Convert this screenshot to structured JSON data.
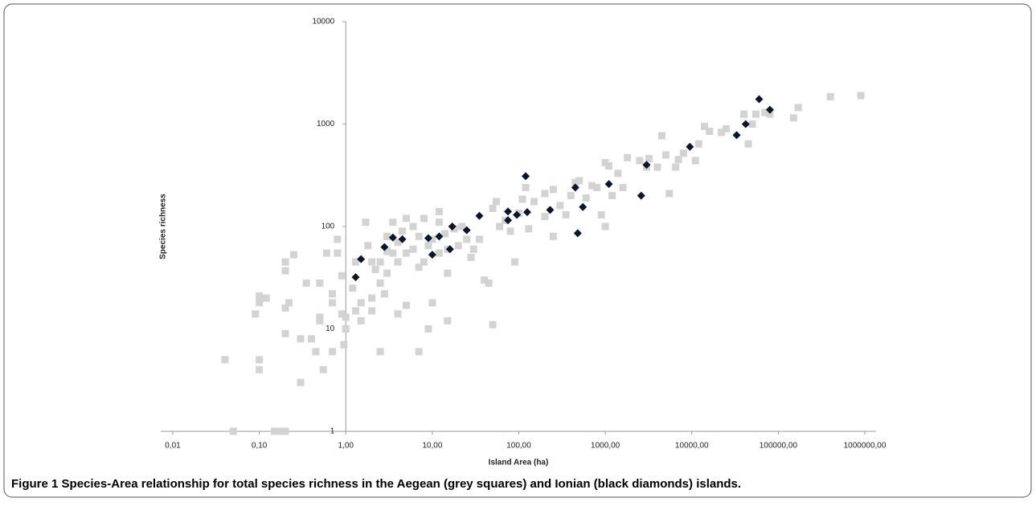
{
  "chart_data": {
    "type": "scatter",
    "xlabel": "Island Area (ha)",
    "ylabel": "Species richness",
    "figure_label": "Figure 1",
    "caption": "Species-Area relationship for total species richness in the Aegean (grey squares) and Ionian (black diamonds) islands.",
    "xscale": "log",
    "yscale": "log",
    "grid": false,
    "y_axis_at": 1,
    "xlim": [
      0.01,
      1000000
    ],
    "ylim": [
      1,
      10000
    ],
    "xticks": [
      {
        "value": 0.01,
        "label": "0,01"
      },
      {
        "value": 0.1,
        "label": "0,10"
      },
      {
        "value": 1,
        "label": "1,00"
      },
      {
        "value": 10,
        "label": "10,00"
      },
      {
        "value": 100,
        "label": "100,00"
      },
      {
        "value": 1000,
        "label": "1000,00"
      },
      {
        "value": 10000,
        "label": "10000,00"
      },
      {
        "value": 100000,
        "label": "100000,00"
      },
      {
        "value": 1000000,
        "label": "1000000,00"
      }
    ],
    "yticks": [
      1,
      10,
      100,
      1000,
      10000
    ],
    "series": [
      {
        "color": "#d3d3d3",
        "marker": "square",
        "x": [
          0.04,
          0.05,
          0.09,
          0.1,
          0.1,
          0.1,
          0.1,
          0.12,
          0.15,
          0.17,
          0.2,
          0.2,
          0.2,
          0.2,
          0.2,
          0.22,
          0.25,
          0.3,
          0.3,
          0.35,
          0.4,
          0.45,
          0.5,
          0.5,
          0.5,
          0.55,
          0.6,
          0.7,
          0.7,
          0.7,
          0.8,
          0.8,
          0.9,
          0.9,
          0.95,
          1,
          1,
          1.2,
          1.3,
          1.3,
          1.5,
          1.5,
          1.7,
          1.8,
          2,
          2,
          2,
          2.2,
          2.5,
          2.5,
          2.5,
          2.8,
          3,
          3,
          3,
          3.5,
          3.5,
          4,
          4,
          4,
          4.5,
          5,
          5,
          5,
          6,
          6,
          7,
          7,
          7,
          8,
          8,
          9,
          9,
          10,
          10,
          12,
          12,
          12,
          14,
          15,
          15,
          15,
          18,
          20,
          22,
          25,
          28,
          30,
          35,
          40,
          45,
          50,
          50,
          55,
          60,
          70,
          80,
          90,
          100,
          110,
          120,
          130,
          150,
          200,
          200,
          250,
          250,
          300,
          350,
          400,
          450,
          500,
          600,
          700,
          800,
          900,
          1000,
          1000,
          1100,
          1200,
          1400,
          1600,
          1800,
          2500,
          3000,
          3200,
          4000,
          4500,
          5000,
          5500,
          6500,
          7000,
          8000,
          11000,
          12000,
          14000,
          16000,
          22000,
          25000,
          40000,
          45000,
          50000,
          55000,
          70000,
          80000,
          150000,
          170000,
          400000,
          900000
        ],
        "values": [
          5,
          1,
          14,
          21,
          18,
          5,
          4,
          20,
          1,
          1,
          1,
          45,
          37,
          16,
          9,
          18,
          53,
          3,
          8,
          28,
          8,
          6,
          28,
          13,
          12,
          4,
          55,
          18,
          22,
          6,
          75,
          55,
          33,
          14,
          7,
          10,
          13,
          25,
          45,
          15,
          18,
          12,
          110,
          65,
          45,
          20,
          15,
          38,
          45,
          28,
          6,
          22,
          80,
          57,
          35,
          110,
          55,
          70,
          45,
          14,
          90,
          120,
          55,
          17,
          100,
          60,
          80,
          40,
          6,
          120,
          45,
          65,
          10,
          75,
          18,
          140,
          110,
          55,
          85,
          60,
          35,
          12,
          95,
          65,
          100,
          75,
          50,
          60,
          75,
          30,
          28,
          11,
          150,
          175,
          100,
          115,
          90,
          45,
          135,
          185,
          240,
          95,
          175,
          125,
          210,
          80,
          230,
          160,
          130,
          200,
          270,
          280,
          190,
          250,
          240,
          130,
          420,
          100,
          390,
          200,
          330,
          240,
          470,
          440,
          380,
          460,
          380,
          770,
          500,
          210,
          380,
          450,
          520,
          440,
          640,
          950,
          850,
          830,
          900,
          1250,
          640,
          1000,
          1250,
          1300,
          1250,
          1150,
          1450,
          1850,
          1900
        ]
      },
      {
        "color": "#0b1626",
        "marker": "diamond",
        "x": [
          1.3,
          1.5,
          2.8,
          3.5,
          4.5,
          9,
          10,
          12,
          16,
          17,
          25,
          35,
          75,
          75,
          95,
          120,
          125,
          230,
          450,
          480,
          550,
          1100,
          2600,
          3000,
          9500,
          33000,
          42000,
          60000,
          80000
        ],
        "values": [
          32,
          48,
          63,
          78,
          75,
          77,
          53,
          80,
          60,
          100,
          92,
          127,
          140,
          115,
          130,
          310,
          138,
          145,
          240,
          86,
          155,
          260,
          200,
          400,
          600,
          780,
          1000,
          1750,
          1380
        ]
      }
    ]
  }
}
